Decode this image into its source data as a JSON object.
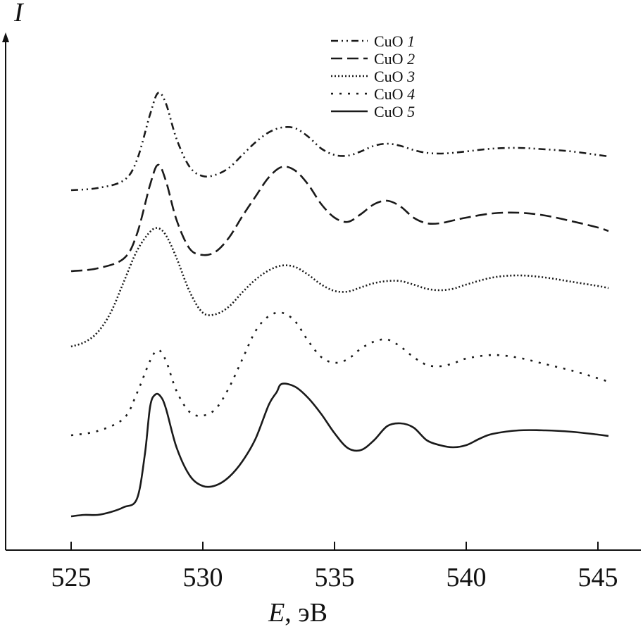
{
  "chart_data": {
    "type": "line",
    "title": "",
    "xlabel": {
      "symbol": "E",
      "unit": ", эВ"
    },
    "ylabel": "I",
    "xlim": [
      525,
      545.5
    ],
    "x_ticks": [
      525,
      530,
      535,
      540,
      545
    ],
    "grid": false,
    "legend_position": "top-right",
    "y_ticks": [],
    "series": [
      {
        "name": "CuO",
        "index": "1",
        "dash": "10,5,2,5,2,5",
        "x": [
          525,
          526,
          527,
          527.5,
          528,
          528.3,
          528.6,
          529,
          529.5,
          530,
          530.5,
          531,
          531.5,
          532,
          532.5,
          533,
          533.5,
          534,
          534.5,
          535,
          535.5,
          536,
          536.5,
          537,
          537.5,
          538,
          538.5,
          539,
          539.5,
          540,
          541,
          542,
          543,
          544,
          545,
          545.4
        ],
        "y": [
          12,
          15,
          26,
          55,
          120,
          150,
          135,
          85,
          45,
          32,
          34,
          44,
          62,
          80,
          94,
          101,
          100,
          88,
          71,
          62,
          61,
          67,
          75,
          78,
          75,
          69,
          65,
          64,
          65,
          67,
          71,
          72,
          70,
          67,
          62,
          60
        ]
      },
      {
        "name": "CuO",
        "index": "2",
        "dash": "16,7",
        "x": [
          525,
          526,
          527,
          527.5,
          528,
          528.3,
          528.6,
          529,
          529.5,
          530,
          530.5,
          531,
          531.5,
          532,
          532.5,
          533,
          533.5,
          534,
          534.5,
          535,
          535.5,
          536,
          536.5,
          537,
          537.5,
          538,
          538.5,
          539,
          539.5,
          540,
          541,
          542,
          543,
          544,
          545,
          545.4
        ],
        "y": [
          12,
          16,
          30,
          65,
          135,
          163,
          140,
          85,
          44,
          35,
          40,
          60,
          90,
          118,
          145,
          160,
          155,
          135,
          107,
          88,
          82,
          93,
          107,
          112,
          104,
          88,
          80,
          80,
          84,
          88,
          94,
          95,
          91,
          83,
          74,
          69
        ]
      },
      {
        "name": "CuO",
        "index": "3",
        "dash": "2,3",
        "x": [
          525,
          525.5,
          526,
          526.5,
          527,
          527.5,
          528,
          528.3,
          528.6,
          529,
          529.5,
          530,
          530.5,
          531,
          531.5,
          532,
          532.5,
          533,
          533.5,
          534,
          534.5,
          535,
          535.5,
          536,
          536.5,
          537,
          537.5,
          538,
          538.5,
          539,
          539.5,
          540,
          541,
          542,
          543,
          544,
          545,
          545.4
        ],
        "y": [
          12,
          18,
          32,
          60,
          104,
          148,
          175,
          180,
          170,
          138,
          90,
          60,
          58,
          69,
          89,
          107,
          120,
          127,
          125,
          114,
          100,
          91,
          90,
          96,
          102,
          105,
          105,
          100,
          94,
          92,
          94,
          100,
          110,
          113,
          110,
          104,
          98,
          95
        ]
      },
      {
        "name": "CuO",
        "index": "4",
        "dash": "3,9",
        "x": [
          525,
          526,
          527,
          527.5,
          528,
          528.3,
          528.6,
          529,
          529.5,
          530,
          530.5,
          531,
          531.5,
          532,
          532.5,
          533,
          533.5,
          534,
          534.5,
          535,
          535.5,
          536,
          536.5,
          537,
          537.5,
          538,
          538.5,
          539,
          539.5,
          540,
          541,
          542,
          543,
          544,
          545,
          545.4
        ],
        "y": [
          12,
          18,
          36,
          72,
          118,
          133,
          118,
          75,
          45,
          40,
          50,
          80,
          120,
          160,
          181,
          186,
          174,
          146,
          123,
          115,
          120,
          135,
          145,
          148,
          138,
          123,
          112,
          110,
          114,
          121,
          126,
          122,
          113,
          104,
          93,
          88
        ]
      },
      {
        "name": "CuO",
        "index": "5",
        "dash": "",
        "x": [
          525,
          525.5,
          526,
          526.5,
          527,
          527.5,
          527.8,
          528,
          528.2,
          528.4,
          528.6,
          529,
          529.5,
          530,
          530.5,
          531,
          531.5,
          532,
          532.5,
          532.8,
          533,
          533.5,
          534,
          534.5,
          535,
          535.5,
          536,
          536.5,
          537,
          537.5,
          538,
          538.5,
          539,
          539.5,
          540,
          540.5,
          541,
          542,
          543,
          544,
          545,
          545.4
        ],
        "y": [
          2,
          4,
          4,
          8,
          15,
          27,
          90,
          158,
          175,
          172,
          155,
          100,
          60,
          45,
          46,
          58,
          80,
          112,
          160,
          178,
          190,
          186,
          170,
          147,
          120,
          99,
          96,
          110,
          130,
          134,
          128,
          110,
          103,
          100,
          103,
          112,
          119,
          124,
          124,
          122,
          118,
          116
        ]
      }
    ]
  }
}
